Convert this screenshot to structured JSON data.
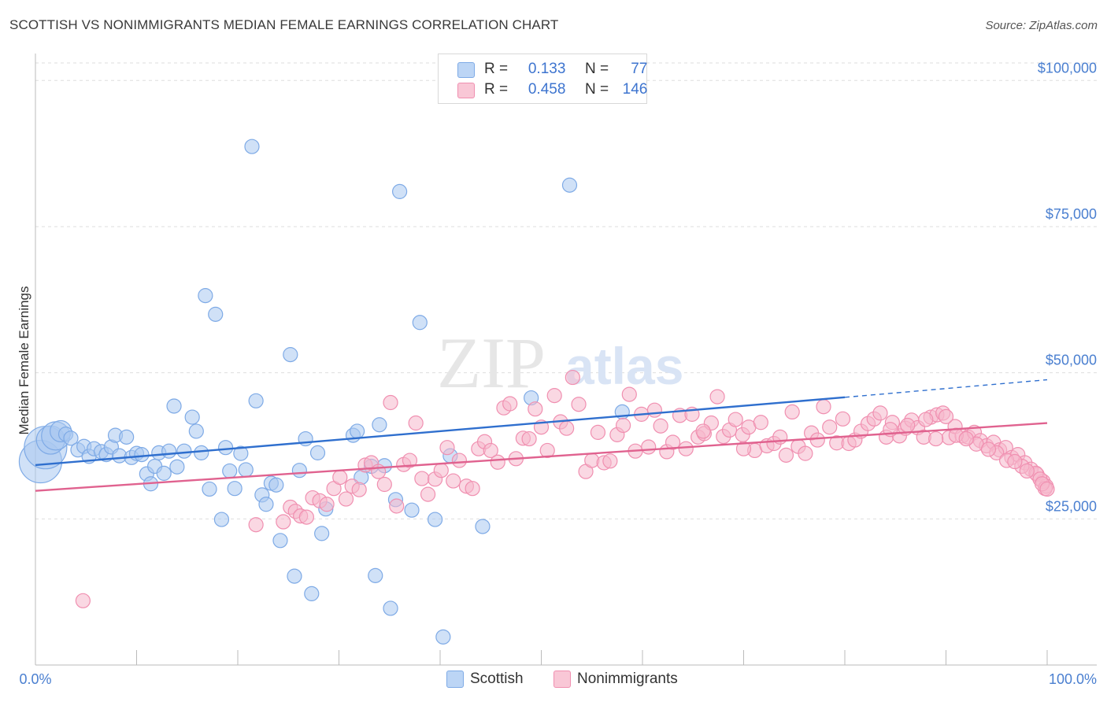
{
  "header": {
    "title": "SCOTTISH VS NONIMMIGRANTS MEDIAN FEMALE EARNINGS CORRELATION CHART",
    "source": "Source: ZipAtlas.com"
  },
  "watermark": {
    "zip": "ZIP",
    "atlas": "atlas"
  },
  "legend_top": {
    "rows": [
      {
        "r_label": "R =",
        "r_value": "0.133",
        "n_label": "N =",
        "n_value": "77",
        "color": "#a9c8f0"
      },
      {
        "r_label": "R =",
        "r_value": "0.458",
        "n_label": "N =",
        "n_value": "146",
        "color": "#f6b8cc"
      }
    ]
  },
  "legend_bottom": {
    "items": [
      {
        "label": "Scottish",
        "color": "#a9c8f0"
      },
      {
        "label": "Nonimmigrants",
        "color": "#f6b8cc"
      }
    ]
  },
  "chart_data": {
    "type": "scatter",
    "ylabel": "Median Female Earnings",
    "xlabel": "",
    "xlim": [
      0,
      100
    ],
    "ylim": [
      0,
      103000
    ],
    "x_tick_labels": [
      "0.0%",
      "100.0%"
    ],
    "y_ticks": [
      {
        "value": 25000,
        "label": "$25,000"
      },
      {
        "value": 50000,
        "label": "$50,000"
      },
      {
        "value": 75000,
        "label": "$75,000"
      },
      {
        "value": 100000,
        "label": "$100,000"
      }
    ],
    "grid": true,
    "legend_position": "top-center",
    "series": [
      {
        "name": "Scottish",
        "color": "#7eaae6",
        "trend": {
          "x": [
            0,
            80
          ],
          "y": [
            34200,
            45800
          ],
          "dashed_to": [
            100,
            48800
          ],
          "color": "#2f6fce"
        },
        "points": [
          [
            0.5,
            34800,
            3
          ],
          [
            1.0,
            37200,
            3
          ],
          [
            1.5,
            38500,
            2
          ],
          [
            2.0,
            39200,
            2
          ],
          [
            2.5,
            40000,
            1.5
          ],
          [
            3.0,
            39500,
            1
          ],
          [
            3.5,
            38800,
            1
          ],
          [
            4.2,
            36800,
            1
          ],
          [
            4.8,
            37400,
            1
          ],
          [
            5.3,
            35700,
            1
          ],
          [
            5.8,
            37000,
            1
          ],
          [
            6.5,
            36500,
            1
          ],
          [
            7.0,
            36000,
            1
          ],
          [
            7.5,
            37300,
            1
          ],
          [
            7.9,
            39300,
            1
          ],
          [
            8.3,
            35800,
            1
          ],
          [
            9.0,
            39000,
            1
          ],
          [
            9.5,
            35500,
            1
          ],
          [
            10.0,
            36200,
            1
          ],
          [
            10.5,
            36000,
            1
          ],
          [
            11.0,
            32700,
            1
          ],
          [
            11.4,
            31000,
            1
          ],
          [
            11.8,
            34000,
            1
          ],
          [
            12.2,
            36300,
            1
          ],
          [
            12.7,
            32800,
            1
          ],
          [
            13.2,
            36600,
            1
          ],
          [
            13.7,
            44300,
            1
          ],
          [
            14.0,
            33900,
            1
          ],
          [
            14.7,
            36600,
            1
          ],
          [
            15.5,
            42400,
            1
          ],
          [
            15.9,
            40000,
            1
          ],
          [
            16.4,
            36300,
            1
          ],
          [
            16.8,
            63200,
            1
          ],
          [
            17.2,
            30100,
            1
          ],
          [
            17.8,
            60000,
            1
          ],
          [
            18.4,
            24900,
            1
          ],
          [
            18.8,
            37200,
            1
          ],
          [
            19.2,
            33200,
            1
          ],
          [
            19.7,
            30200,
            1
          ],
          [
            20.3,
            36200,
            1
          ],
          [
            20.8,
            33400,
            1
          ],
          [
            21.4,
            88700,
            1
          ],
          [
            21.8,
            45200,
            1
          ],
          [
            22.4,
            29100,
            1
          ],
          [
            22.8,
            27500,
            1
          ],
          [
            23.3,
            31100,
            1
          ],
          [
            23.8,
            30800,
            1
          ],
          [
            24.2,
            21300,
            1
          ],
          [
            25.2,
            53100,
            1
          ],
          [
            25.6,
            15200,
            1
          ],
          [
            26.1,
            33300,
            1
          ],
          [
            26.7,
            38700,
            1
          ],
          [
            27.3,
            12200,
            1
          ],
          [
            27.9,
            36300,
            1
          ],
          [
            28.3,
            22500,
            1
          ],
          [
            28.7,
            26700,
            1
          ],
          [
            31.4,
            39300,
            1
          ],
          [
            31.8,
            40000,
            1
          ],
          [
            32.2,
            32100,
            1
          ],
          [
            33.2,
            34000,
            1
          ],
          [
            33.6,
            15300,
            1
          ],
          [
            34.0,
            41100,
            1
          ],
          [
            34.5,
            34100,
            1
          ],
          [
            35.1,
            9700,
            1
          ],
          [
            35.6,
            28300,
            1
          ],
          [
            36.0,
            81000,
            1
          ],
          [
            37.2,
            26500,
            1
          ],
          [
            38.0,
            58600,
            1
          ],
          [
            39.5,
            24900,
            1
          ],
          [
            40.3,
            4800,
            1
          ],
          [
            41.0,
            35800,
            1
          ],
          [
            44.2,
            23700,
            1
          ],
          [
            49.0,
            45700,
            1
          ],
          [
            52.8,
            82100,
            1
          ],
          [
            58.0,
            43300,
            1
          ]
        ]
      },
      {
        "name": "Nonimmigrants",
        "color": "#f08fb0",
        "trend": {
          "x": [
            0,
            100
          ],
          "y": [
            29800,
            41400
          ],
          "color": "#e0628f"
        },
        "points": [
          [
            4.7,
            11000,
            1
          ],
          [
            21.8,
            24000,
            1
          ],
          [
            24.5,
            24500,
            1
          ],
          [
            25.2,
            27000,
            1
          ],
          [
            25.7,
            26300,
            1
          ],
          [
            26.2,
            25500,
            1
          ],
          [
            26.8,
            25300,
            1
          ],
          [
            27.4,
            28600,
            1
          ],
          [
            28.1,
            28100,
            1
          ],
          [
            28.8,
            27500,
            1
          ],
          [
            29.5,
            30200,
            1
          ],
          [
            30.1,
            32100,
            1
          ],
          [
            30.7,
            28400,
            1
          ],
          [
            31.3,
            30600,
            1
          ],
          [
            32.0,
            30000,
            1
          ],
          [
            32.6,
            34200,
            1
          ],
          [
            33.2,
            34600,
            1
          ],
          [
            33.9,
            33100,
            1
          ],
          [
            34.5,
            30900,
            1
          ],
          [
            35.1,
            44900,
            1
          ],
          [
            35.7,
            27200,
            1
          ],
          [
            36.4,
            34300,
            1
          ],
          [
            37.0,
            35000,
            1
          ],
          [
            37.6,
            41400,
            1
          ],
          [
            38.2,
            31900,
            1
          ],
          [
            38.8,
            29200,
            1
          ],
          [
            39.5,
            31800,
            1
          ],
          [
            40.1,
            33300,
            1
          ],
          [
            40.7,
            37200,
            1
          ],
          [
            41.3,
            31500,
            1
          ],
          [
            41.9,
            35000,
            1
          ],
          [
            42.6,
            30600,
            1
          ],
          [
            43.2,
            30200,
            1
          ],
          [
            43.8,
            37000,
            1
          ],
          [
            44.4,
            38200,
            1
          ],
          [
            45.0,
            36700,
            1
          ],
          [
            45.7,
            34700,
            1
          ],
          [
            46.3,
            44000,
            1
          ],
          [
            46.9,
            44700,
            1
          ],
          [
            47.5,
            35300,
            1
          ],
          [
            48.2,
            38800,
            1
          ],
          [
            48.8,
            38700,
            1
          ],
          [
            49.4,
            43800,
            1
          ],
          [
            50.0,
            40700,
            1
          ],
          [
            50.6,
            36700,
            1
          ],
          [
            51.3,
            46100,
            1
          ],
          [
            51.9,
            41600,
            1
          ],
          [
            52.5,
            40500,
            1
          ],
          [
            53.1,
            49200,
            1
          ],
          [
            53.7,
            44600,
            1
          ],
          [
            54.4,
            33100,
            1
          ],
          [
            55.0,
            35000,
            1
          ],
          [
            55.6,
            39800,
            1
          ],
          [
            56.2,
            34600,
            1
          ],
          [
            56.8,
            34900,
            1
          ],
          [
            57.5,
            39400,
            1
          ],
          [
            58.1,
            41000,
            1
          ],
          [
            58.7,
            46300,
            1
          ],
          [
            59.3,
            36600,
            1
          ],
          [
            59.9,
            42900,
            1
          ],
          [
            60.6,
            37300,
            1
          ],
          [
            61.2,
            43600,
            1
          ],
          [
            61.8,
            40900,
            1
          ],
          [
            62.4,
            36500,
            1
          ],
          [
            63.0,
            38100,
            1
          ],
          [
            63.7,
            42700,
            1
          ],
          [
            64.3,
            37000,
            1
          ],
          [
            64.9,
            42900,
            1
          ],
          [
            65.5,
            39000,
            1
          ],
          [
            66.1,
            39600,
            1
          ],
          [
            66.8,
            41400,
            1
          ],
          [
            67.4,
            45900,
            1
          ],
          [
            68.0,
            39100,
            1
          ],
          [
            68.6,
            40200,
            1
          ],
          [
            69.2,
            42000,
            1
          ],
          [
            69.9,
            39400,
            1
          ],
          [
            70.5,
            40700,
            1
          ],
          [
            71.1,
            36700,
            1
          ],
          [
            71.7,
            41500,
            1
          ],
          [
            72.3,
            37500,
            1
          ],
          [
            73.0,
            37900,
            1
          ],
          [
            73.6,
            39000,
            1
          ],
          [
            74.2,
            35900,
            1
          ],
          [
            74.8,
            43300,
            1
          ],
          [
            75.4,
            37400,
            1
          ],
          [
            76.1,
            36200,
            1
          ],
          [
            76.7,
            39700,
            1
          ],
          [
            77.3,
            38500,
            1
          ],
          [
            77.9,
            44200,
            1
          ],
          [
            78.5,
            40700,
            1
          ],
          [
            79.2,
            38000,
            1
          ],
          [
            79.8,
            42100,
            1
          ],
          [
            80.4,
            37900,
            1
          ],
          [
            81.0,
            38500,
            1
          ],
          [
            81.6,
            40000,
            1
          ],
          [
            82.3,
            41300,
            1
          ],
          [
            82.9,
            42100,
            1
          ],
          [
            83.5,
            43100,
            1
          ],
          [
            84.1,
            39000,
            1
          ],
          [
            84.7,
            41500,
            1
          ],
          [
            85.4,
            39200,
            1
          ],
          [
            86.0,
            40500,
            1
          ],
          [
            86.6,
            41900,
            1
          ],
          [
            87.2,
            40600,
            1
          ],
          [
            87.8,
            39000,
            1
          ],
          [
            88.5,
            42400,
            1
          ],
          [
            89.1,
            42800,
            1
          ],
          [
            89.7,
            43100,
            1
          ],
          [
            90.3,
            38900,
            1
          ],
          [
            90.9,
            40800,
            1
          ],
          [
            91.6,
            39200,
            1
          ],
          [
            92.2,
            39000,
            1
          ],
          [
            92.8,
            39800,
            1
          ],
          [
            93.4,
            38400,
            1
          ],
          [
            94.0,
            37500,
            1
          ],
          [
            94.7,
            38100,
            1
          ],
          [
            95.3,
            36800,
            1
          ],
          [
            95.9,
            37200,
            1
          ],
          [
            96.5,
            35500,
            1
          ],
          [
            97.1,
            36000,
            1
          ],
          [
            97.8,
            34600,
            1
          ],
          [
            98.4,
            33500,
            1
          ],
          [
            99.0,
            32600,
            1
          ],
          [
            99.6,
            31400,
            1
          ],
          [
            99.9,
            30600,
            1
          ],
          [
            90.0,
            42500,
            1
          ],
          [
            91.0,
            39300,
            1
          ],
          [
            93.0,
            37800,
            1
          ],
          [
            95.0,
            36300,
            1
          ],
          [
            96.0,
            35000,
            1
          ],
          [
            97.5,
            34000,
            1
          ],
          [
            98.9,
            32800,
            1
          ],
          [
            99.3,
            31800,
            1
          ],
          [
            99.8,
            30200,
            1
          ],
          [
            84.5,
            40300,
            1
          ],
          [
            86.2,
            41000,
            1
          ],
          [
            88.0,
            42000,
            1
          ],
          [
            89.0,
            38700,
            1
          ],
          [
            92.0,
            38700,
            1
          ],
          [
            94.2,
            36900,
            1
          ],
          [
            96.8,
            34800,
            1
          ],
          [
            98.0,
            33200,
            1
          ],
          [
            99.5,
            31000,
            1
          ],
          [
            100.0,
            30100,
            1
          ],
          [
            66.0,
            40000,
            1
          ],
          [
            70.0,
            37000,
            1
          ]
        ]
      }
    ]
  }
}
